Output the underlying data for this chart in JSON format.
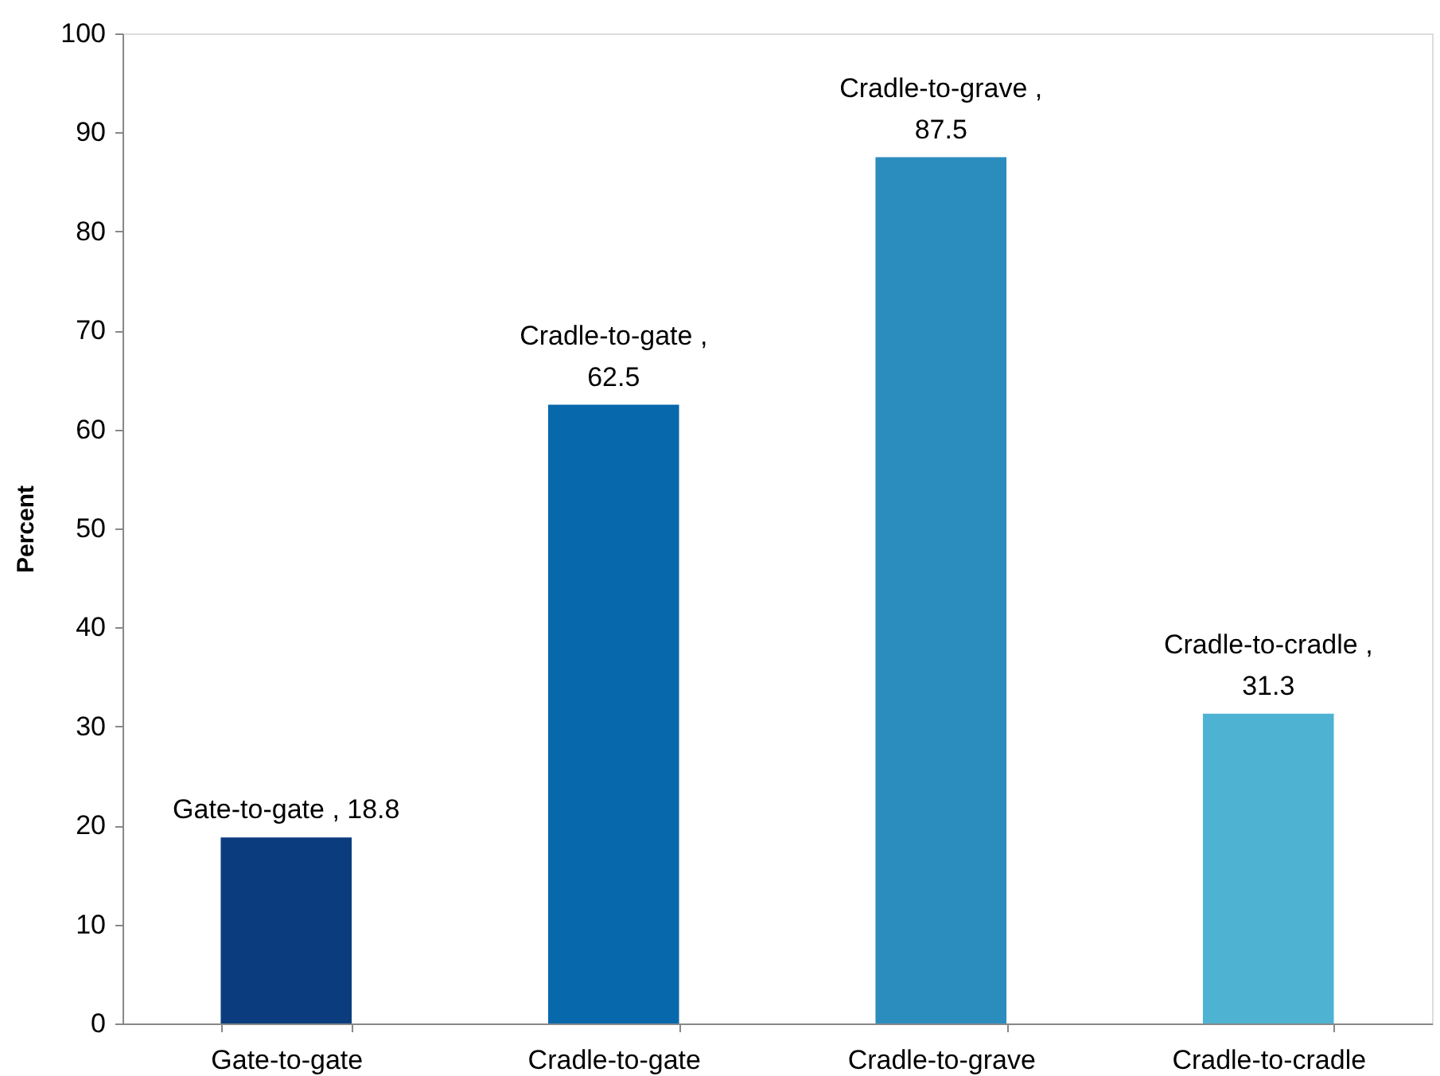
{
  "chart_data": {
    "type": "bar",
    "ylabel": "Percent",
    "categories": [
      "Gate-to-gate",
      "Cradle-to-gate",
      "Cradle-to-grave",
      "Cradle-to-cradle"
    ],
    "values": [
      18.8,
      62.5,
      87.5,
      31.3
    ],
    "colors": [
      "#0b3d7e",
      "#0868ac",
      "#2b8cbe",
      "#4eb3d3"
    ],
    "value_labels": [
      "Gate-to-gate , 18.8",
      "Cradle-to-gate ,\n62.5",
      "Cradle-to-grave ,\n87.5",
      "Cradle-to-cradle ,\n31.3"
    ],
    "ylim": [
      0,
      100
    ],
    "yticks": [
      0,
      10,
      20,
      30,
      40,
      50,
      60,
      70,
      80,
      90,
      100
    ],
    "grid": false
  }
}
